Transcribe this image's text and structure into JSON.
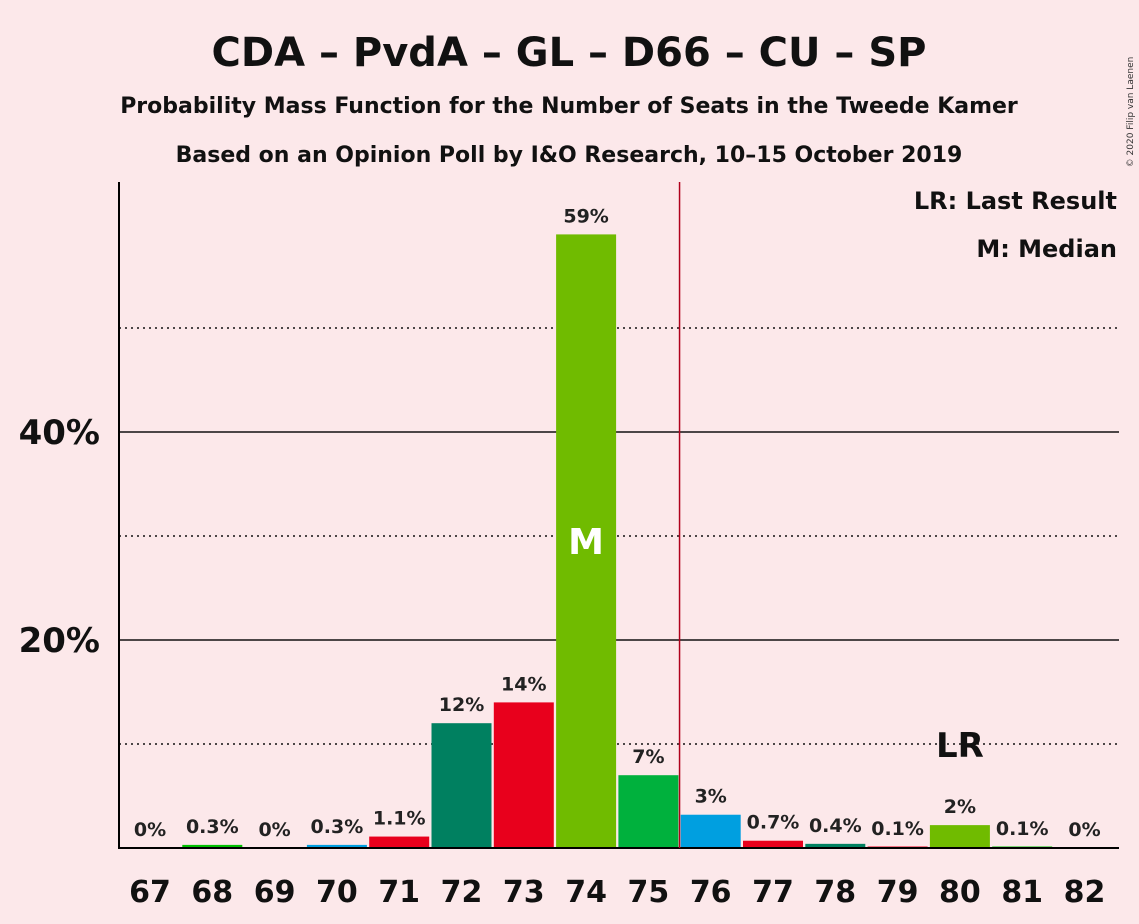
{
  "chart_data": {
    "type": "bar",
    "title": "CDA – PvdA – GL – D66 – CU – SP",
    "subtitle_1": "Probability Mass Function for the Number of Seats in the Tweede Kamer",
    "subtitle_2": "Based on an Opinion Poll by I&O Research, 10–15 October 2019",
    "copyright": "© 2020 Filip van Laenen",
    "legend": {
      "last_result": "LR: Last Result",
      "median": "M: Median",
      "placement": "top-right"
    },
    "categories": [
      67,
      68,
      69,
      70,
      71,
      72,
      73,
      74,
      75,
      76,
      77,
      78,
      79,
      80,
      81,
      82
    ],
    "values": [
      0,
      0.3,
      0,
      0.3,
      1.1,
      12,
      14,
      59,
      7,
      3.2,
      0.7,
      0.4,
      0.1,
      2.2,
      0.1,
      0
    ],
    "labels": [
      "0%",
      "0.3%",
      "0%",
      "0.3%",
      "1.1%",
      "12%",
      "14%",
      "59%",
      "7%",
      "3%",
      "0.7%",
      "0.4%",
      "0.1%",
      "2%",
      "0.1%",
      "0%"
    ],
    "bar_colors": [
      "#00c000",
      "#00c000",
      "#00c000",
      "#009fe0",
      "#e8001c",
      "#008060",
      "#e8001c",
      "#70bb00",
      "#00b13d",
      "#009fe0",
      "#e8001c",
      "#008060",
      "#e8001c",
      "#70bb00",
      "#00c000",
      "#00c000"
    ],
    "ylim": [
      0,
      64
    ],
    "yticks": [
      20,
      40
    ],
    "ytick_labels": [
      "20%",
      "40%"
    ],
    "minor_gridlines": [
      10,
      30,
      50
    ],
    "median_seat": 74,
    "median_label": "M",
    "last_result_seat": 80,
    "last_result_label": "LR",
    "majority_line_after_seat": 75,
    "colors": {
      "background": "#fce8ea",
      "majority_line": "#b0001c",
      "axis": "#000000"
    }
  }
}
